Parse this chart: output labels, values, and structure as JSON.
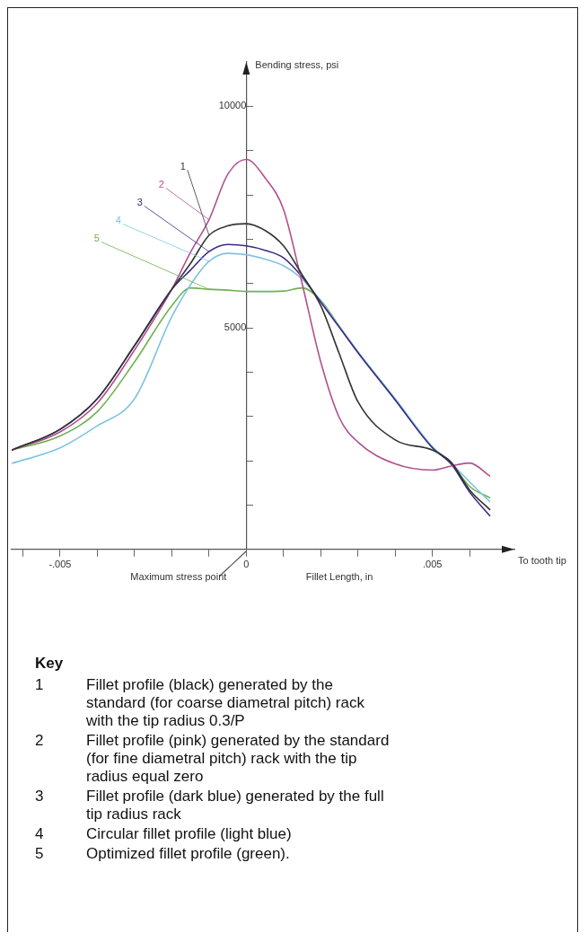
{
  "chart_data": {
    "type": "line",
    "xlabel": "Fillet Length, in",
    "ylabel": "Bending stress, psi",
    "legend_title": "Key",
    "x": [
      -0.0063,
      -0.005,
      -0.004,
      -0.003,
      -0.002,
      -0.0015,
      -0.001,
      -0.0005,
      0,
      0.0005,
      0.001,
      0.0015,
      0.002,
      0.0025,
      0.003,
      0.004,
      0.005,
      0.0055,
      0.006,
      0.00655
    ],
    "series": [
      {
        "name": "1",
        "color": "#333333",
        "values": [
          2240,
          2710,
          3400,
          4600,
          5870,
          6450,
          7090,
          7300,
          7350,
          7200,
          6850,
          6200,
          5500,
          4410,
          3330,
          2470,
          2240,
          1970,
          1340,
          890
        ]
      },
      {
        "name": "2",
        "color": "#b0508f",
        "values": [
          2240,
          2650,
          3300,
          4500,
          5870,
          6700,
          7440,
          8460,
          8800,
          8390,
          7670,
          6000,
          4230,
          2970,
          2420,
          1930,
          1790,
          1880,
          1950,
          1650
        ]
      },
      {
        "name": "3",
        "color": "#3a2a80",
        "values": [
          2240,
          2710,
          3400,
          4600,
          5870,
          6300,
          6720,
          6880,
          6850,
          6750,
          6580,
          6150,
          5580,
          5010,
          4440,
          3370,
          2290,
          1930,
          1290,
          750
        ]
      },
      {
        "name": "4",
        "color": "#7fc4e0",
        "values": [
          1940,
          2290,
          2790,
          3400,
          5250,
          5970,
          6500,
          6680,
          6650,
          6550,
          6400,
          6100,
          5600,
          5030,
          4460,
          3400,
          2320,
          1950,
          1520,
          1070
        ]
      },
      {
        "name": "5",
        "color": "#6fb04f",
        "values": [
          2240,
          2560,
          3110,
          4230,
          5500,
          5900,
          5870,
          5850,
          5820,
          5820,
          5830,
          5900,
          5620,
          5030,
          4450,
          3380,
          2300,
          1940,
          1420,
          1160
        ]
      }
    ],
    "xlim": [
      -0.0063,
      0.0072
    ],
    "xticks": [
      {
        "value": -0.006,
        "label": null
      },
      {
        "value": -0.005,
        "label": "-.005"
      },
      {
        "value": -0.004,
        "label": null
      },
      {
        "value": -0.003,
        "label": null
      },
      {
        "value": -0.002,
        "label": null
      },
      {
        "value": -0.001,
        "label": null
      },
      {
        "value": 0,
        "label": "0"
      },
      {
        "value": 0.001,
        "label": null
      },
      {
        "value": 0.002,
        "label": null
      },
      {
        "value": 0.003,
        "label": null
      },
      {
        "value": 0.004,
        "label": null
      },
      {
        "value": 0.005,
        "label": ".005"
      },
      {
        "value": 0.006,
        "label": null
      }
    ],
    "ylim": [
      0,
      11000
    ],
    "yticks": [
      {
        "value": 1000,
        "label": null
      },
      {
        "value": 2000,
        "label": null
      },
      {
        "value": 3000,
        "label": null
      },
      {
        "value": 4000,
        "label": null
      },
      5000,
      {
        "value": 6000,
        "label": null
      },
      {
        "value": 7000,
        "label": null
      },
      {
        "value": 8000,
        "label": null
      },
      {
        "value": 9000,
        "label": null
      },
      10000
    ],
    "grid": false,
    "legend": false,
    "marker": "none",
    "line_style": "solid",
    "annotations": [
      "To tooth tip",
      "Maximum stress point",
      "Fillet profile (black) generated by the standard (for coarse diametral pitch) rack with the tip radius 0.3/P",
      "Fillet profile (pink) generated by the standard (for fine diametral pitch) rack with the tip radius equal zero",
      "Fillet profile (dark blue) generated by the full tip radius rack",
      "Circular fillet profile (light blue)",
      "Optimized fillet profile (green)."
    ]
  }
}
